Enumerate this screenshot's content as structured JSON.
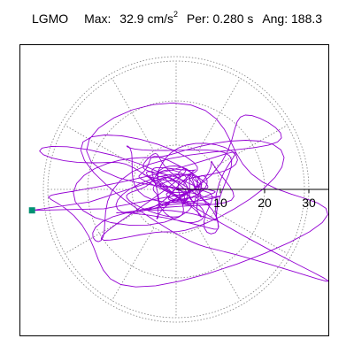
{
  "header": {
    "station": "LGMO",
    "max_label": "Max:",
    "max_value": "32.9",
    "max_unit": "cm/s",
    "max_unit_exp": "2",
    "per_label": "Per:",
    "per_value": "0.280 s",
    "ang_label": "Ang:",
    "ang_value": "188.3"
  },
  "colors": {
    "trace": "#9400d3",
    "marker": "#009073",
    "grid": "#808080",
    "axis": "#000000"
  },
  "chart_data": {
    "type": "polar-trace",
    "title": "LGMO   Max: 32.9 cm/s2  Per: 0.280 s  Ang: 188.3",
    "r_ticks": [
      10,
      20,
      30
    ],
    "r_max": 32.9,
    "angle_grid_step_deg": 30,
    "grid": true,
    "peak": {
      "amplitude": 32.9,
      "angle_deg": 188.3
    },
    "trace_shape": {
      "min_points": 900,
      "core_amplitude": 8,
      "excursion_amplitude": 32.9
    }
  }
}
